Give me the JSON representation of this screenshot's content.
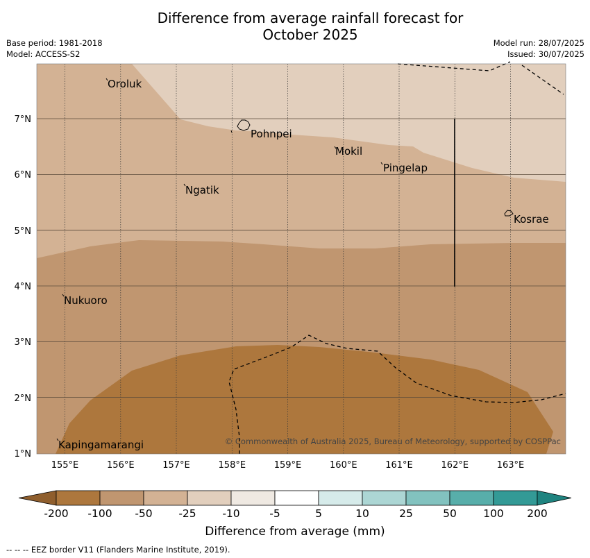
{
  "header": {
    "title_line1": "Difference from average rainfall forecast for",
    "title_line2": "October 2025",
    "base_period": "Base period: 1981-2018",
    "model": "Model: ACCESS-S2",
    "model_run": "Model run: 28/07/2025",
    "issued": "Issued: 30/07/2025"
  },
  "map": {
    "lon_labels": [
      "155°E",
      "156°E",
      "157°E",
      "158°E",
      "159°E",
      "160°E",
      "161°E",
      "162°E",
      "163°E"
    ],
    "lat_labels": [
      "7°N",
      "6°N",
      "5°N",
      "4°N",
      "3°N",
      "2°N",
      "1°N"
    ],
    "places": {
      "oroluk": "Oroluk",
      "pohnpei": "Pohnpei",
      "mokil": "Mokil",
      "pingelap": "Pingelap",
      "ngatik": "Ngatik",
      "kosrae": "Kosrae",
      "nukuoro": "Nukuoro",
      "kapingamarangi": "Kapingamarangi"
    },
    "copyright": "© Commonwealth of Australia 2025, Bureau of Meteorology, supported by COSPPac",
    "colors": {
      "minus100_to_minus50": "#ad773d",
      "minus50_to_minus25": "#c09670",
      "minus25_to_minus10": "#d3b294",
      "minus10_to_minus5": "#e2cfbd"
    }
  },
  "colorbar": {
    "title": "Difference from average (mm)",
    "ticks": [
      "-200",
      "-100",
      "-50",
      "-25",
      "-10",
      "-5",
      "5",
      "10",
      "25",
      "50",
      "100",
      "200"
    ],
    "colors": [
      "#8f5e2d",
      "#ad773d",
      "#c09670",
      "#d3b294",
      "#e2cfbd",
      "#efe9e2",
      "#ffffff",
      "#d6ebea",
      "#acd6d4",
      "#82c2bf",
      "#58aeaa",
      "#339a96",
      "#1f8480"
    ]
  },
  "footnote": "--  --  -- EEZ border V11 (Flanders Marine Institute, 2019)."
}
